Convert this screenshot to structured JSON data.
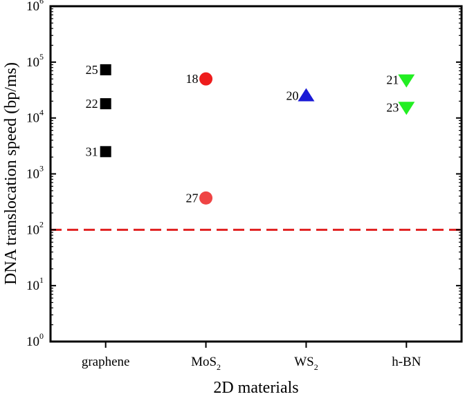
{
  "chart_data": {
    "type": "scatter",
    "xlabel": "2D materials",
    "ylabel": "DNA translocation speed (bp/ms)",
    "yscale": "log",
    "ylim": [
      1,
      1000000
    ],
    "grid": false,
    "legend": "none",
    "categories": [
      {
        "base": "graphene",
        "sub": ""
      },
      {
        "base": "MoS",
        "sub": "2"
      },
      {
        "base": "WS",
        "sub": "2"
      },
      {
        "base": "h-BN",
        "sub": ""
      }
    ],
    "y_ticks": [
      {
        "base": "10",
        "exp": "0"
      },
      {
        "base": "10",
        "exp": "1"
      },
      {
        "base": "10",
        "exp": "2"
      },
      {
        "base": "10",
        "exp": "3"
      },
      {
        "base": "10",
        "exp": "4"
      },
      {
        "base": "10",
        "exp": "5"
      },
      {
        "base": "10",
        "exp": "6"
      }
    ],
    "reference_line": {
      "y": 100,
      "color": "#e02020",
      "style": "dashed"
    },
    "points": [
      {
        "category": "graphene",
        "y": 73000,
        "label": "25",
        "marker": "square",
        "color": "#000000"
      },
      {
        "category": "graphene",
        "y": 18000,
        "label": "22",
        "marker": "square",
        "color": "#000000"
      },
      {
        "category": "graphene",
        "y": 2500,
        "label": "31",
        "marker": "square",
        "color": "#000000"
      },
      {
        "category": "MoS2",
        "y": 50000,
        "label": "18",
        "marker": "circle",
        "color": "#ee1c1c"
      },
      {
        "category": "MoS2",
        "y": 370,
        "label": "27",
        "marker": "circle",
        "color": "#ef4444"
      },
      {
        "category": "WS2",
        "y": 25000,
        "label": "20",
        "marker": "triangle-up",
        "color": "#1a1ad6"
      },
      {
        "category": "h-BN",
        "y": 48000,
        "label": "21",
        "marker": "triangle-down",
        "color": "#22ee22"
      },
      {
        "category": "h-BN",
        "y": 15500,
        "label": "23",
        "marker": "triangle-down",
        "color": "#22ee22"
      }
    ]
  }
}
